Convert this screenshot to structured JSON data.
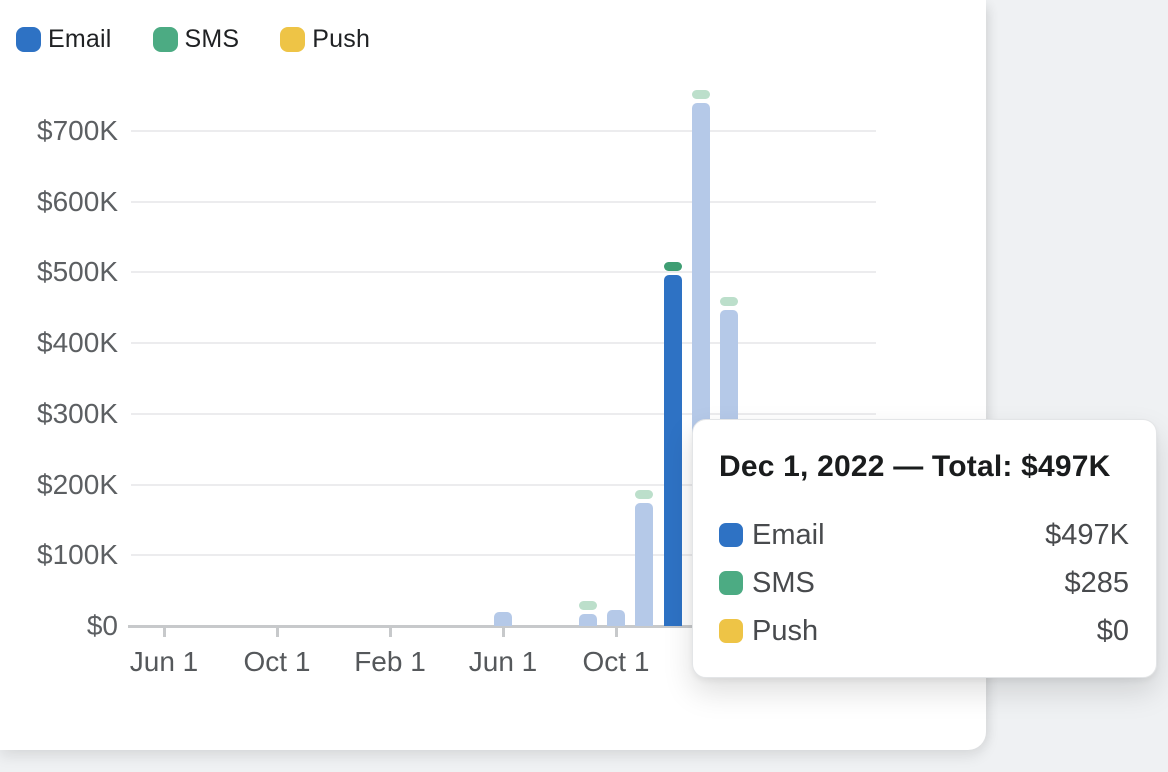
{
  "page": {
    "background_color": "#eff1f3",
    "card_color": "#ffffff"
  },
  "legend": {
    "items": [
      {
        "label": "Email",
        "color": "#2e72c4"
      },
      {
        "label": "SMS",
        "color": "#4cab83"
      },
      {
        "label": "Push",
        "color": "#eec446"
      }
    ]
  },
  "chart_data": {
    "type": "bar",
    "stacked": true,
    "series_names": [
      "Email",
      "SMS",
      "Push"
    ],
    "ylim": [
      0,
      770000
    ],
    "grid": true,
    "y_ticks": [
      {
        "label": "$700K",
        "value": 700
      },
      {
        "label": "$600K",
        "value": 600
      },
      {
        "label": "$500K",
        "value": 500
      },
      {
        "label": "$400K",
        "value": 400
      },
      {
        "label": "$300K",
        "value": 300
      },
      {
        "label": "$200K",
        "value": 200
      },
      {
        "label": "$100K",
        "value": 100
      },
      {
        "label": "$0",
        "value": 0
      }
    ],
    "x_ticks": [
      {
        "label": "Jun 1",
        "month_index": 0
      },
      {
        "label": "Oct 1",
        "month_index": 4
      },
      {
        "label": "Feb 1",
        "month_index": 8
      },
      {
        "label": "Jun 1",
        "month_index": 12
      },
      {
        "label": "Oct 1",
        "month_index": 16
      }
    ],
    "x_axis_note": "monthly bars from Jun 1 2021; months with no visible bar are $0",
    "bars": [
      {
        "date": "Jun 1, 2022",
        "month_index": 12,
        "email_k": 20,
        "sms_cap": false,
        "highlighted": false
      },
      {
        "date": "Sep 1, 2022",
        "month_index": 15,
        "email_k": 17,
        "sms_cap": true,
        "highlighted": false
      },
      {
        "date": "Oct 1, 2022",
        "month_index": 16,
        "email_k": 22,
        "sms_cap": false,
        "highlighted": false
      },
      {
        "date": "Nov 1, 2022",
        "month_index": 17,
        "email_k": 174,
        "sms_cap": true,
        "highlighted": false
      },
      {
        "date": "Dec 1, 2022",
        "month_index": 18,
        "email_k": 497,
        "sms_cap": true,
        "highlighted": true
      },
      {
        "date": "Jan 1, 2023",
        "month_index": 19,
        "email_k": 740,
        "sms_cap": true,
        "highlighted": false
      },
      {
        "date": "Feb 1, 2023",
        "month_index": 20,
        "email_k": 447,
        "sms_cap": true,
        "highlighted": false
      }
    ],
    "colors": {
      "email": "#2e72c4",
      "email_faded": "#b5c9e8",
      "sms": "#3f9e73",
      "sms_faded": "#bcdfcb",
      "gridline": "#ececee",
      "axis": "#c7c9cb"
    }
  },
  "tooltip": {
    "title": "Dec 1, 2022 — Total: $497K",
    "rows": [
      {
        "label": "Email",
        "value": "$497K",
        "color": "#2e72c4"
      },
      {
        "label": "SMS",
        "value": "$285",
        "color": "#4cab83"
      },
      {
        "label": "Push",
        "value": "$0",
        "color": "#eec446"
      }
    ]
  }
}
